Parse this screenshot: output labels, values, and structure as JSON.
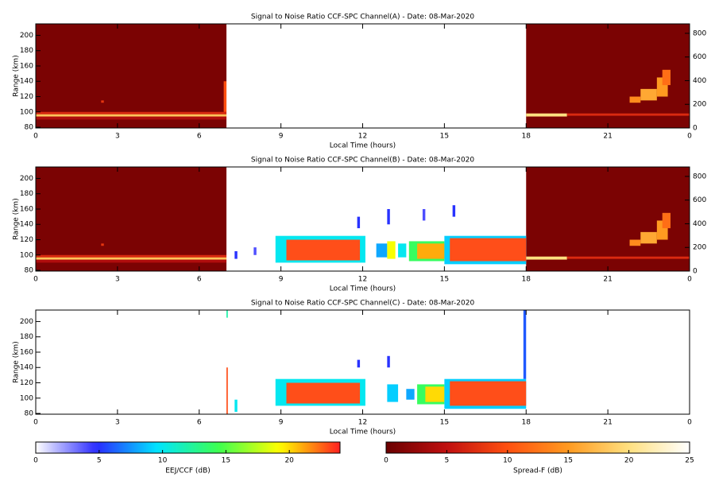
{
  "chart_data": [
    {
      "type": "heatmap",
      "title": "Signal to Noise Ratio CCF-SPC Channel(A) - Date: 08-Mar-2020",
      "xlabel": "Local Time (hours)",
      "ylabel": "Range (km)",
      "xlim": [
        0,
        24
      ],
      "xticks": [
        0,
        3,
        6,
        9,
        12,
        15,
        18,
        21,
        {
          "value": 24,
          "label": "0"
        }
      ],
      "ylim": [
        79,
        215
      ],
      "yticks": [
        80,
        100,
        120,
        140,
        160,
        180,
        200
      ],
      "y2lim": [
        0,
        880
      ],
      "y2ticks": [
        0,
        200,
        400,
        600,
        800
      ],
      "spread_f": [
        {
          "x": [
            0,
            7
          ],
          "y": [
            79,
            215
          ],
          "value": 1
        },
        {
          "x": [
            18,
            24
          ],
          "y": [
            79,
            215
          ],
          "value": 1
        },
        {
          "x": [
            0,
            7
          ],
          "y": [
            90,
            94
          ],
          "value": 4
        },
        {
          "x": [
            0,
            7
          ],
          "y": [
            94,
            97
          ],
          "value": 18
        },
        {
          "x": [
            0,
            7
          ],
          "y": [
            97,
            100
          ],
          "value": 7
        },
        {
          "x": [
            2.4,
            2.5
          ],
          "y": [
            112,
            115
          ],
          "value": 8
        },
        {
          "x": [
            6.9,
            7
          ],
          "y": [
            100,
            140
          ],
          "value": 10
        },
        {
          "x": [
            18,
            19.5
          ],
          "y": [
            94,
            98
          ],
          "value": 20
        },
        {
          "x": [
            19.5,
            24
          ],
          "y": [
            95,
            98
          ],
          "value": 7
        },
        {
          "x": [
            21.8,
            22.2
          ],
          "y": [
            112,
            120
          ],
          "value": 14
        },
        {
          "x": [
            22.2,
            22.8
          ],
          "y": [
            115,
            130
          ],
          "value": 16
        },
        {
          "x": [
            22.8,
            23.2
          ],
          "y": [
            120,
            145
          ],
          "value": 15
        },
        {
          "x": [
            23,
            23.3
          ],
          "y": [
            135,
            155
          ],
          "value": 12
        }
      ],
      "eej": []
    },
    {
      "type": "heatmap",
      "title": "Signal to Noise Ratio CCF-SPC Channel(B) - Date: 08-Mar-2020",
      "xlabel": "Local Time (hours)",
      "ylabel": "Range (km)",
      "xlim": [
        0,
        24
      ],
      "xticks": [
        0,
        3,
        6,
        9,
        12,
        15,
        18,
        21,
        {
          "value": 24,
          "label": "0"
        }
      ],
      "ylim": [
        79,
        215
      ],
      "yticks": [
        80,
        100,
        120,
        140,
        160,
        180,
        200
      ],
      "y2lim": [
        0,
        880
      ],
      "y2ticks": [
        0,
        200,
        400,
        600,
        800
      ],
      "spread_f": [
        {
          "x": [
            0,
            7
          ],
          "y": [
            79,
            215
          ],
          "value": 1
        },
        {
          "x": [
            18,
            24
          ],
          "y": [
            79,
            215
          ],
          "value": 1
        },
        {
          "x": [
            0,
            7
          ],
          "y": [
            90,
            94
          ],
          "value": 4
        },
        {
          "x": [
            0,
            7
          ],
          "y": [
            94,
            97
          ],
          "value": 18
        },
        {
          "x": [
            0,
            7
          ],
          "y": [
            97,
            100
          ],
          "value": 7
        },
        {
          "x": [
            2.4,
            2.5
          ],
          "y": [
            112,
            115
          ],
          "value": 8
        },
        {
          "x": [
            18,
            19.5
          ],
          "y": [
            94,
            98
          ],
          "value": 20
        },
        {
          "x": [
            19.5,
            24
          ],
          "y": [
            95,
            98
          ],
          "value": 7
        },
        {
          "x": [
            21.8,
            22.2
          ],
          "y": [
            112,
            120
          ],
          "value": 14
        },
        {
          "x": [
            22.2,
            22.8
          ],
          "y": [
            115,
            130
          ],
          "value": 16
        },
        {
          "x": [
            22.8,
            23.2
          ],
          "y": [
            120,
            145
          ],
          "value": 15
        },
        {
          "x": [
            23,
            23.3
          ],
          "y": [
            135,
            155
          ],
          "value": 12
        }
      ],
      "eej": [
        {
          "x": [
            7.3,
            7.4
          ],
          "y": [
            95,
            105
          ],
          "value": 5
        },
        {
          "x": [
            8,
            8.1
          ],
          "y": [
            100,
            110
          ],
          "value": 4
        },
        {
          "x": [
            8.8,
            12.1
          ],
          "y": [
            90,
            125
          ],
          "value": 10
        },
        {
          "x": [
            9.2,
            11.9
          ],
          "y": [
            93,
            120
          ],
          "value": 23
        },
        {
          "x": [
            11.8,
            11.9
          ],
          "y": [
            135,
            150
          ],
          "value": 5
        },
        {
          "x": [
            12.5,
            12.9
          ],
          "y": [
            97,
            115
          ],
          "value": 8
        },
        {
          "x": [
            12.9,
            13.2
          ],
          "y": [
            95,
            118
          ],
          "value": 19
        },
        {
          "x": [
            12.9,
            13
          ],
          "y": [
            140,
            160
          ],
          "value": 5
        },
        {
          "x": [
            13.3,
            13.6
          ],
          "y": [
            97,
            115
          ],
          "value": 10
        },
        {
          "x": [
            13.7,
            15
          ],
          "y": [
            92,
            118
          ],
          "value": 14
        },
        {
          "x": [
            14,
            15
          ],
          "y": [
            95,
            115
          ],
          "value": 21
        },
        {
          "x": [
            14.2,
            14.3
          ],
          "y": [
            145,
            160
          ],
          "value": 4
        },
        {
          "x": [
            15,
            18
          ],
          "y": [
            88,
            125
          ],
          "value": 9
        },
        {
          "x": [
            15.2,
            18
          ],
          "y": [
            92,
            122
          ],
          "value": 23
        },
        {
          "x": [
            15.3,
            15.4
          ],
          "y": [
            150,
            165
          ],
          "value": 5
        }
      ]
    },
    {
      "type": "heatmap",
      "title": "Signal to Noise Ratio CCF-SPC Channel(C) - Date: 08-Mar-2020",
      "xlabel": "Local Time (hours)",
      "ylabel": "Range (km)",
      "xlim": [
        0,
        24
      ],
      "xticks": [
        0,
        3,
        6,
        9,
        12,
        15,
        18,
        21,
        {
          "value": 24,
          "label": "0"
        }
      ],
      "ylim": [
        79,
        215
      ],
      "yticks": [
        80,
        100,
        120,
        140,
        160,
        180,
        200
      ],
      "spread_f": [],
      "eej": [
        {
          "x": [
            7,
            7.05
          ],
          "y": [
            79,
            140
          ],
          "value": 23
        },
        {
          "x": [
            7,
            7.05
          ],
          "y": [
            205,
            215
          ],
          "value": 12
        },
        {
          "x": [
            7.3,
            7.4
          ],
          "y": [
            82,
            98
          ],
          "value": 10
        },
        {
          "x": [
            8.8,
            12.1
          ],
          "y": [
            90,
            125
          ],
          "value": 10
        },
        {
          "x": [
            9.2,
            11.9
          ],
          "y": [
            93,
            120
          ],
          "value": 23
        },
        {
          "x": [
            11.8,
            11.9
          ],
          "y": [
            140,
            150
          ],
          "value": 5
        },
        {
          "x": [
            12.9,
            13.3
          ],
          "y": [
            95,
            118
          ],
          "value": 9
        },
        {
          "x": [
            12.9,
            13
          ],
          "y": [
            140,
            155
          ],
          "value": 5
        },
        {
          "x": [
            13.6,
            13.9
          ],
          "y": [
            98,
            112
          ],
          "value": 8
        },
        {
          "x": [
            14,
            15
          ],
          "y": [
            92,
            118
          ],
          "value": 14
        },
        {
          "x": [
            14.3,
            15
          ],
          "y": [
            95,
            115
          ],
          "value": 20
        },
        {
          "x": [
            15,
            18
          ],
          "y": [
            86,
            125
          ],
          "value": 9
        },
        {
          "x": [
            15.2,
            18
          ],
          "y": [
            90,
            122
          ],
          "value": 23
        },
        {
          "x": [
            17.9,
            18
          ],
          "y": [
            125,
            215
          ],
          "value": 6
        }
      ]
    }
  ],
  "colorbars": [
    {
      "label": "EEJ/CCF (dB)",
      "lim": [
        0,
        24
      ],
      "ticks": [
        0,
        5,
        10,
        15,
        20
      ],
      "colors": [
        "#ffffff",
        "#2a2aff",
        "#00e5ff",
        "#3cff50",
        "#ffff00",
        "#ff2020"
      ]
    },
    {
      "label": "Spread-F (dB)",
      "lim": [
        0,
        25
      ],
      "ticks": [
        0,
        5,
        10,
        15,
        20,
        25
      ],
      "colors": [
        "#6a0000",
        "#c01010",
        "#ff5010",
        "#ff9a20",
        "#ffe080",
        "#ffffff"
      ]
    }
  ]
}
